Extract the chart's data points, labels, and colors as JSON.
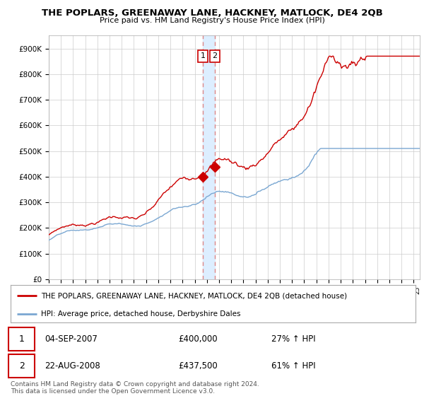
{
  "title": "THE POPLARS, GREENAWAY LANE, HACKNEY, MATLOCK, DE4 2QB",
  "subtitle": "Price paid vs. HM Land Registry's House Price Index (HPI)",
  "yticks": [
    0,
    100000,
    200000,
    300000,
    400000,
    500000,
    600000,
    700000,
    800000,
    900000
  ],
  "ytick_labels": [
    "£0",
    "£100K",
    "£200K",
    "£300K",
    "£400K",
    "£500K",
    "£600K",
    "£700K",
    "£800K",
    "£900K"
  ],
  "xlim_start": 1995.0,
  "xlim_end": 2025.5,
  "ylim": [
    0,
    950000
  ],
  "transaction1_x": 2007.67,
  "transaction1_y": 400000,
  "transaction1_label": "1",
  "transaction1_date": "04-SEP-2007",
  "transaction1_price": "£400,000",
  "transaction1_hpi": "27% ↑ HPI",
  "transaction2_x": 2008.64,
  "transaction2_y": 437500,
  "transaction2_label": "2",
  "transaction2_date": "22-AUG-2008",
  "transaction2_price": "£437,500",
  "transaction2_hpi": "61% ↑ HPI",
  "line1_color": "#cc0000",
  "line2_color": "#7aa7d2",
  "vline_color": "#dd8888",
  "vband_color": "#ddeeff",
  "legend1_label": "THE POPLARS, GREENAWAY LANE, HACKNEY, MATLOCK, DE4 2QB (detached house)",
  "legend2_label": "HPI: Average price, detached house, Derbyshire Dales",
  "footer": "Contains HM Land Registry data © Crown copyright and database right 2024.\nThis data is licensed under the Open Government Licence v3.0.",
  "background_color": "#ffffff",
  "grid_color": "#cccccc"
}
